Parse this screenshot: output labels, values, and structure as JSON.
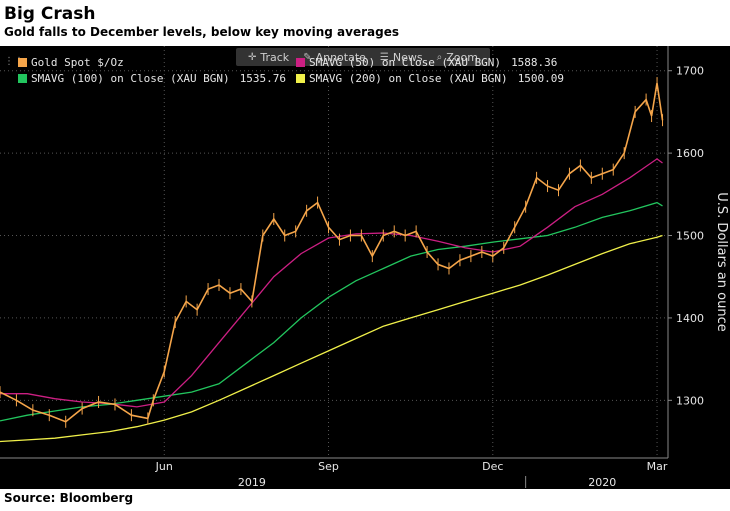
{
  "header": {
    "title": "Big Crash",
    "subtitle": "Gold falls to December levels, below key moving averages"
  },
  "toolbar": {
    "track": "Track",
    "annotate": "Annotate",
    "news": "News",
    "zoom": "Zoom"
  },
  "legend": [
    {
      "label": "Gold Spot $/Oz",
      "value": "",
      "color": "#f5a54a"
    },
    {
      "label": "SMAVG (50)  on Close (XAU BGN)",
      "value": "1588.36",
      "color": "#cc1f83"
    },
    {
      "label": "SMAVG (100)  on Close (XAU BGN)",
      "value": "1535.76",
      "color": "#22c55e"
    },
    {
      "label": "SMAVG (200)  on Close (XAU BGN)",
      "value": "1500.09",
      "color": "#f0f04a"
    }
  ],
  "icons": {
    "drag": "drag-handle-icon",
    "track": "crosshair-icon",
    "annotate": "pencil-icon",
    "news": "news-icon",
    "zoom": "zoom-icon"
  },
  "chart_data": {
    "type": "line",
    "ylabel": "U.S. Dollars an ounce",
    "ylim": [
      1230,
      1730
    ],
    "y_ticks": [
      1300,
      1400,
      1500,
      1600,
      1700
    ],
    "x_ticks": [
      "Jun",
      "Sep",
      "Dec",
      "Mar"
    ],
    "x_tick_positions": [
      4.0,
      7.0,
      10.0,
      13.0
    ],
    "xlim": [
      1.0,
      13.2
    ],
    "year_labels": [
      {
        "label": "2019",
        "x": 5.6
      },
      {
        "label": "2020",
        "x": 12.0
      }
    ],
    "year_divider_x": 10.6,
    "grid": true,
    "series": [
      {
        "name": "Gold Spot $/Oz",
        "color": "#f5a54a",
        "x": [
          1.0,
          1.3,
          1.6,
          1.9,
          2.2,
          2.5,
          2.8,
          3.1,
          3.4,
          3.7,
          3.8,
          4.0,
          4.2,
          4.4,
          4.6,
          4.8,
          5.0,
          5.2,
          5.4,
          5.6,
          5.8,
          6.0,
          6.2,
          6.4,
          6.6,
          6.8,
          7.0,
          7.2,
          7.4,
          7.6,
          7.8,
          8.0,
          8.2,
          8.4,
          8.6,
          8.8,
          9.0,
          9.2,
          9.4,
          9.6,
          9.8,
          10.0,
          10.2,
          10.4,
          10.6,
          10.8,
          11.0,
          11.2,
          11.4,
          11.6,
          11.8,
          12.0,
          12.2,
          12.4,
          12.6,
          12.8,
          12.9,
          13.0,
          13.1
        ],
        "values": [
          1310,
          1300,
          1288,
          1282,
          1274,
          1290,
          1298,
          1295,
          1282,
          1278,
          1300,
          1335,
          1395,
          1420,
          1410,
          1435,
          1440,
          1430,
          1435,
          1420,
          1500,
          1520,
          1500,
          1505,
          1530,
          1540,
          1510,
          1495,
          1500,
          1500,
          1475,
          1500,
          1505,
          1500,
          1505,
          1480,
          1465,
          1460,
          1470,
          1475,
          1480,
          1475,
          1485,
          1510,
          1535,
          1570,
          1560,
          1555,
          1575,
          1585,
          1570,
          1575,
          1580,
          1600,
          1650,
          1665,
          1645,
          1685,
          1640
        ]
      },
      {
        "name": "SMAVG (50)  on Close (XAU BGN)",
        "color": "#cc1f83",
        "x": [
          1.0,
          1.5,
          2.0,
          2.5,
          3.0,
          3.5,
          4.0,
          4.5,
          5.0,
          5.5,
          6.0,
          6.5,
          7.0,
          7.5,
          8.0,
          8.5,
          9.0,
          9.5,
          10.0,
          10.5,
          11.0,
          11.5,
          12.0,
          12.5,
          13.0,
          13.1
        ],
        "values": [
          1308,
          1308,
          1302,
          1298,
          1296,
          1292,
          1298,
          1330,
          1370,
          1410,
          1450,
          1478,
          1497,
          1502,
          1503,
          1500,
          1493,
          1485,
          1480,
          1487,
          1510,
          1535,
          1550,
          1570,
          1593,
          1588
        ]
      },
      {
        "name": "SMAVG (100)  on Close (XAU BGN)",
        "color": "#22c55e",
        "x": [
          1.0,
          1.5,
          2.0,
          2.5,
          3.0,
          3.5,
          4.0,
          4.5,
          5.0,
          5.5,
          6.0,
          6.5,
          7.0,
          7.5,
          8.0,
          8.5,
          9.0,
          9.5,
          10.0,
          10.5,
          11.0,
          11.5,
          12.0,
          12.5,
          13.0,
          13.1
        ],
        "values": [
          1275,
          1282,
          1287,
          1292,
          1295,
          1300,
          1305,
          1310,
          1320,
          1345,
          1370,
          1400,
          1425,
          1445,
          1460,
          1475,
          1483,
          1487,
          1492,
          1496,
          1500,
          1510,
          1522,
          1530,
          1540,
          1536
        ]
      },
      {
        "name": "SMAVG (200)  on Close (XAU BGN)",
        "color": "#f0f04a",
        "x": [
          1.0,
          1.5,
          2.0,
          2.5,
          3.0,
          3.5,
          4.0,
          4.5,
          5.0,
          5.5,
          6.0,
          6.5,
          7.0,
          7.5,
          8.0,
          8.5,
          9.0,
          9.5,
          10.0,
          10.5,
          11.0,
          11.5,
          12.0,
          12.5,
          13.0,
          13.1
        ],
        "values": [
          1250,
          1252,
          1254,
          1258,
          1262,
          1268,
          1276,
          1286,
          1300,
          1315,
          1330,
          1345,
          1360,
          1375,
          1390,
          1400,
          1410,
          1420,
          1430,
          1440,
          1452,
          1465,
          1478,
          1490,
          1498,
          1500
        ]
      }
    ]
  },
  "footer": {
    "source": "Source: Bloomberg"
  }
}
